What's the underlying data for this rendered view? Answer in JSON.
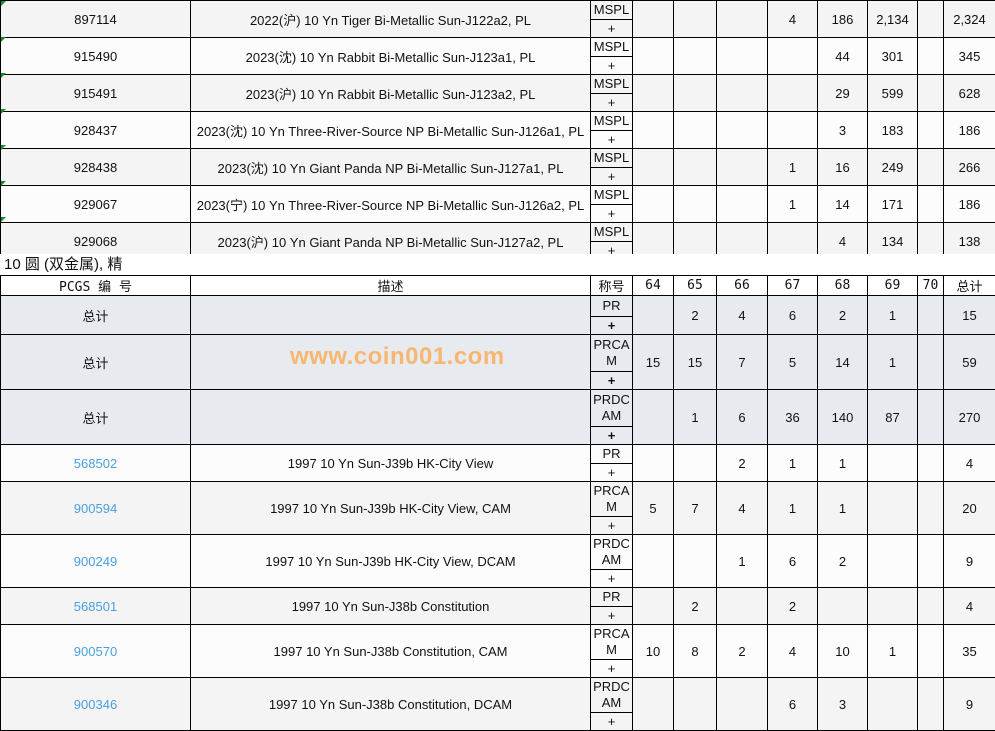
{
  "grades": [
    "64",
    "65",
    "66",
    "67",
    "68",
    "69",
    "70"
  ],
  "top_rows": [
    {
      "code": "897114",
      "desc": "2022(沪) 10 Yn Tiger Bi-Metallic Sun-J122a2, PL",
      "grade": "MSPL",
      "plus": "+",
      "counts": [
        "",
        "",
        "",
        "4",
        "186",
        "2,134",
        ""
      ],
      "total": "2,324"
    },
    {
      "code": "915490",
      "desc": "2023(沈) 10 Yn Rabbit Bi-Metallic Sun-J123a1, PL",
      "grade": "MSPL",
      "plus": "+",
      "counts": [
        "",
        "",
        "",
        "",
        "44",
        "301",
        ""
      ],
      "total": "345"
    },
    {
      "code": "915491",
      "desc": "2023(沪) 10 Yn Rabbit Bi-Metallic Sun-J123a2, PL",
      "grade": "MSPL",
      "plus": "+",
      "counts": [
        "",
        "",
        "",
        "",
        "29",
        "599",
        ""
      ],
      "total": "628"
    },
    {
      "code": "928437",
      "desc": "2023(沈) 10 Yn Three-River-Source NP Bi-Metallic Sun-J126a1, PL",
      "grade": "MSPL",
      "plus": "+",
      "counts": [
        "",
        "",
        "",
        "",
        "3",
        "183",
        ""
      ],
      "total": "186"
    },
    {
      "code": "928438",
      "desc": "2023(沈) 10 Yn Giant Panda NP Bi-Metallic Sun-J127a1, PL",
      "grade": "MSPL",
      "plus": "+",
      "counts": [
        "",
        "",
        "",
        "1",
        "16",
        "249",
        ""
      ],
      "total": "266"
    },
    {
      "code": "929067",
      "desc": "2023(宁) 10 Yn Three-River-Source NP Bi-Metallic Sun-J126a2, PL",
      "grade": "MSPL",
      "plus": "+",
      "counts": [
        "",
        "",
        "",
        "1",
        "14",
        "171",
        ""
      ],
      "total": "186"
    },
    {
      "code": "929068",
      "desc": "2023(沪) 10 Yn Giant Panda NP Bi-Metallic Sun-J127a2, PL",
      "grade": "MSPL",
      "plus": "+",
      "counts": [
        "",
        "",
        "",
        "",
        "4",
        "134",
        ""
      ],
      "total": "138"
    }
  ],
  "section": {
    "title": "10 圆 (双金属), 精",
    "headers": {
      "code": "PCGS 编 号",
      "desc": "描述",
      "grade": "称号",
      "total": "总计"
    },
    "total_rows": [
      {
        "code": "总计",
        "desc": "",
        "grade": "PR",
        "plus": "+",
        "counts": [
          "",
          "2",
          "4",
          "6",
          "2",
          "1",
          ""
        ],
        "total": "15"
      },
      {
        "code": "总计",
        "desc": "",
        "grade": "PRCAM",
        "plus": "+",
        "counts": [
          "15",
          "15",
          "7",
          "5",
          "14",
          "1",
          ""
        ],
        "total": "59"
      },
      {
        "code": "总计",
        "desc": "",
        "grade": "PRDCAM",
        "plus": "+",
        "counts": [
          "",
          "1",
          "6",
          "36",
          "140",
          "87",
          ""
        ],
        "total": "270"
      }
    ],
    "rows": [
      {
        "code": "568502",
        "desc": "1997 10 Yn Sun-J39b HK-City View",
        "grade": "PR",
        "plus": "+",
        "counts": [
          "",
          "",
          "2",
          "1",
          "1",
          "",
          ""
        ],
        "total": "4"
      },
      {
        "code": "900594",
        "desc": "1997 10 Yn Sun-J39b HK-City View, CAM",
        "grade": "PRCAM",
        "plus": "+",
        "counts": [
          "5",
          "7",
          "4",
          "1",
          "1",
          "",
          ""
        ],
        "total": "20"
      },
      {
        "code": "900249",
        "desc": "1997 10 Yn Sun-J39b HK-City View, DCAM",
        "grade": "PRDCAM",
        "plus": "+",
        "counts": [
          "",
          "",
          "1",
          "6",
          "2",
          "",
          ""
        ],
        "total": "9"
      },
      {
        "code": "568501",
        "desc": "1997 10 Yn Sun-J38b Constitution",
        "grade": "PR",
        "plus": "+",
        "counts": [
          "",
          "2",
          "",
          "2",
          "",
          "",
          ""
        ],
        "total": "4"
      },
      {
        "code": "900570",
        "desc": "1997 10 Yn Sun-J38b Constitution, CAM",
        "grade": "PRCAM",
        "plus": "+",
        "counts": [
          "10",
          "8",
          "2",
          "4",
          "10",
          "1",
          ""
        ],
        "total": "35"
      },
      {
        "code": "900346",
        "desc": "1997 10 Yn Sun-J38b Constitution, DCAM",
        "grade": "PRDCAM",
        "plus": "+",
        "counts": [
          "",
          "",
          "",
          "6",
          "3",
          "",
          ""
        ],
        "total": "9"
      }
    ]
  },
  "watermark": "www.coin001.com",
  "colors": {
    "link": "#4a9fe0",
    "total_bg": "#e7ebef",
    "comment_marker": "#1a8a2a"
  }
}
